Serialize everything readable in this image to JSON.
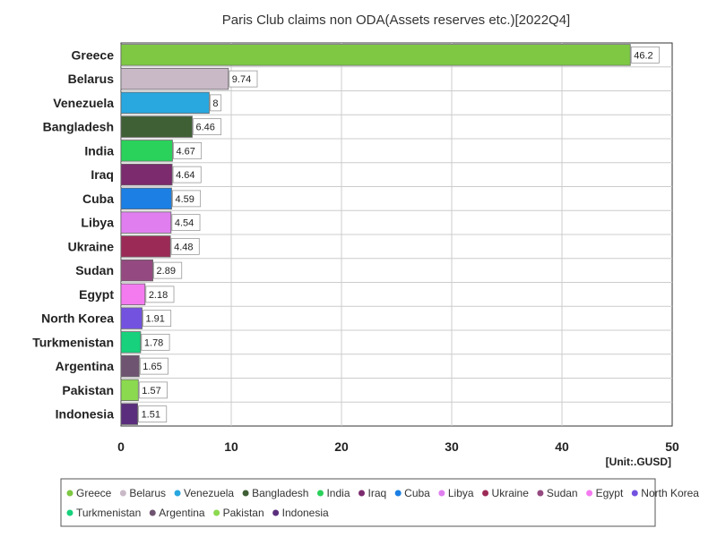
{
  "chart_data": {
    "type": "bar",
    "orientation": "horizontal",
    "title": "Paris Club claims non ODA(Assets reserves etc.)[2022Q4]",
    "unit_label": "[Unit:.GUSD]",
    "xlim": [
      0,
      50
    ],
    "x_ticks": [
      "0",
      "10",
      "20",
      "30",
      "40",
      "50"
    ],
    "grid": true,
    "legend_position": "bottom",
    "categories": [
      "Greece",
      "Belarus",
      "Venezuela",
      "Bangladesh",
      "India",
      "Iraq",
      "Cuba",
      "Libya",
      "Ukraine",
      "Sudan",
      "Egypt",
      "North Korea",
      "Turkmenistan",
      "Argentina",
      "Pakistan",
      "Indonesia"
    ],
    "values": [
      46.2,
      9.74,
      8,
      6.46,
      4.67,
      4.64,
      4.59,
      4.54,
      4.48,
      2.89,
      2.18,
      1.91,
      1.78,
      1.65,
      1.57,
      1.51
    ],
    "value_labels": [
      "46.2",
      "9.74",
      "8",
      "6.46",
      "4.67",
      "4.64",
      "4.59",
      "4.54",
      "4.48",
      "2.89",
      "2.18",
      "1.91",
      "1.78",
      "1.65",
      "1.57",
      "1.51"
    ],
    "colors": [
      "#7ec843",
      "#c9b9c7",
      "#29a7df",
      "#3f5f35",
      "#2ad15a",
      "#7b2b6e",
      "#1b7fe4",
      "#e07ef0",
      "#9c2a57",
      "#944a80",
      "#f47af0",
      "#7352e0",
      "#17d17c",
      "#6e5470",
      "#8bd94f",
      "#5a2e7c"
    ]
  }
}
